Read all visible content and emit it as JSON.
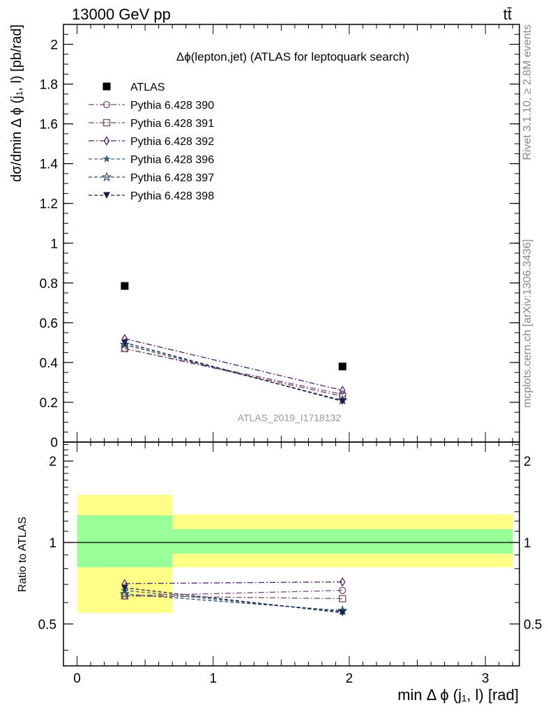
{
  "header": {
    "left": "13000 GeV pp",
    "right": "tt̄"
  },
  "side_labels": {
    "rivet": "Rivet 3.1.10, ≥ 2.8M events",
    "mcplots": "mcplots.cern.ch [arXiv:1306.3436]"
  },
  "chart_data": [
    {
      "type": "scatter",
      "panel": "main",
      "title": "Δϕ(lepton,jet) (ATLAS for leptoquark search)",
      "watermark": "ATLAS_2019_I1718132",
      "ylabel": "dσ/dmin Δ ϕ (j₁, l) [pb/rad]",
      "xlim": [
        -0.1,
        3.25
      ],
      "ylim": [
        0,
        2.1
      ],
      "yticks": [
        0,
        0.2,
        0.4,
        0.6,
        0.8,
        1,
        1.2,
        1.4,
        1.6,
        1.8,
        2
      ],
      "ytick_labels": [
        "0",
        "0.2",
        "0.4",
        "0.6",
        "0.8",
        "1",
        "1.2",
        "1.4",
        "1.6",
        "1.8",
        "2"
      ],
      "x": [
        0.35,
        1.95
      ],
      "legend_position": "top-left",
      "series": [
        {
          "name": "ATLAS",
          "values": [
            0.785,
            0.38
          ],
          "color": "#000000",
          "marker": "filled-square",
          "style": "none"
        },
        {
          "name": "Pythia 6.428 390",
          "values": [
            0.47,
            0.24
          ],
          "color": "#7b4a7b",
          "marker": "open-circle",
          "style": "dashdot"
        },
        {
          "name": "Pythia 6.428 391",
          "values": [
            0.47,
            0.23
          ],
          "color": "#7b4a5a",
          "marker": "open-square",
          "style": "dashdot"
        },
        {
          "name": "Pythia 6.428 392",
          "values": [
            0.52,
            0.26
          ],
          "color": "#50206e",
          "marker": "open-diamond",
          "style": "dashdot"
        },
        {
          "name": "Pythia 6.428 396",
          "values": [
            0.49,
            0.21
          ],
          "color": "#3c6480",
          "marker": "filled-star",
          "style": "dashed"
        },
        {
          "name": "Pythia 6.428 397",
          "values": [
            0.49,
            0.21
          ],
          "color": "#324e6e",
          "marker": "open-star",
          "style": "dashed"
        },
        {
          "name": "Pythia 6.428 398",
          "values": [
            0.5,
            0.205
          ],
          "color": "#1a1e4e",
          "marker": "filled-triangle-down",
          "style": "dashed"
        }
      ]
    },
    {
      "type": "scatter",
      "panel": "ratio",
      "ylabel": "Ratio to ATLAS",
      "xlabel": "min Δ ϕ (j₁, l) [rad]",
      "xlim": [
        -0.1,
        3.25
      ],
      "ylim": [
        0.35,
        2.35
      ],
      "yticks": [
        0.5,
        1,
        2
      ],
      "ytick_labels": [
        "0.5",
        "1",
        "2"
      ],
      "xticks": [
        0,
        1,
        2,
        3
      ],
      "xtick_labels": [
        "0",
        "1",
        "2",
        "3"
      ],
      "reference": 1,
      "bands": [
        {
          "x_low": 0,
          "x_high": 0.7,
          "green": [
            0.81,
            1.26
          ],
          "yellow": [
            0.55,
            1.5
          ]
        },
        {
          "x_low": 0.7,
          "x_high": 3.2,
          "green": [
            0.91,
            1.12
          ],
          "yellow": [
            0.81,
            1.27
          ]
        }
      ],
      "x": [
        0.35,
        1.95
      ],
      "series": [
        {
          "name": "Pythia 6.428 390",
          "values": [
            0.635,
            0.665
          ]
        },
        {
          "name": "Pythia 6.428 391",
          "values": [
            0.635,
            0.62
          ]
        },
        {
          "name": "Pythia 6.428 392",
          "values": [
            0.705,
            0.715
          ]
        },
        {
          "name": "Pythia 6.428 396",
          "values": [
            0.665,
            0.555
          ]
        },
        {
          "name": "Pythia 6.428 397",
          "values": [
            0.645,
            0.56
          ]
        },
        {
          "name": "Pythia 6.428 398",
          "values": [
            0.68,
            0.55
          ]
        }
      ]
    }
  ]
}
